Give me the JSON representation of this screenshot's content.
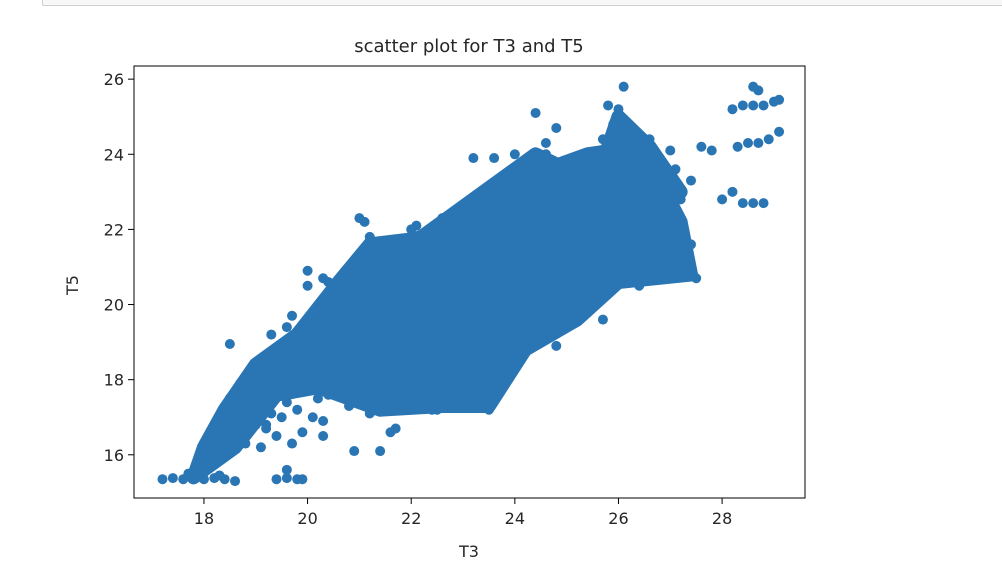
{
  "notebook": {
    "input_cell": ""
  },
  "chart_data": {
    "type": "scatter",
    "title": "scatter plot for T3 and T5",
    "xlabel": "T3",
    "ylabel": "T5",
    "xlim": [
      16.65,
      29.6
    ],
    "ylim": [
      14.85,
      26.35
    ],
    "xticks": [
      18,
      20,
      22,
      24,
      26,
      28
    ],
    "yticks": [
      16,
      18,
      20,
      22,
      24,
      26
    ],
    "grid": false,
    "legend": "none",
    "color": "#2a75b3",
    "series": [
      {
        "values": [
          [
            17.2,
            15.35
          ],
          [
            17.4,
            15.38
          ],
          [
            17.6,
            15.35
          ],
          [
            17.8,
            15.4
          ],
          [
            18.0,
            15.35
          ],
          [
            18.2,
            15.38
          ],
          [
            18.4,
            15.35
          ],
          [
            18.6,
            15.3
          ],
          [
            17.7,
            15.5
          ],
          [
            18.0,
            15.55
          ],
          [
            18.3,
            15.45
          ],
          [
            19.4,
            15.35
          ],
          [
            19.6,
            15.38
          ],
          [
            19.8,
            15.35
          ],
          [
            19.9,
            15.35
          ],
          [
            18.1,
            16.1
          ],
          [
            18.3,
            16.6
          ],
          [
            18.4,
            17.0
          ],
          [
            18.5,
            17.5
          ],
          [
            18.7,
            17.9
          ],
          [
            18.9,
            18.2
          ],
          [
            18.5,
            18.95
          ],
          [
            18.6,
            16.4
          ],
          [
            18.8,
            16.9
          ],
          [
            19.0,
            17.2
          ],
          [
            19.2,
            17.6
          ],
          [
            19.1,
            18.0
          ],
          [
            19.3,
            18.4
          ],
          [
            19.2,
            16.8
          ],
          [
            19.4,
            17.8
          ],
          [
            19.5,
            18.2
          ],
          [
            19.3,
            19.2
          ],
          [
            19.6,
            19.4
          ],
          [
            19.4,
            16.5
          ],
          [
            19.5,
            17.0
          ],
          [
            19.1,
            16.2
          ],
          [
            19.6,
            17.4
          ],
          [
            19.8,
            18.0
          ],
          [
            19.9,
            18.6
          ],
          [
            20.0,
            19.2
          ],
          [
            20.0,
            20.5
          ],
          [
            20.0,
            20.9
          ],
          [
            20.2,
            19.8
          ],
          [
            20.1,
            17.0
          ],
          [
            20.4,
            17.6
          ],
          [
            20.3,
            16.5
          ],
          [
            20.5,
            19.0
          ],
          [
            20.6,
            20.0
          ],
          [
            20.4,
            20.6
          ],
          [
            20.7,
            19.5
          ],
          [
            20.8,
            18.2
          ],
          [
            20.9,
            17.8
          ],
          [
            21.0,
            21.2
          ],
          [
            21.1,
            22.2
          ],
          [
            21.2,
            21.8
          ],
          [
            21.3,
            20.6
          ],
          [
            21.1,
            19.1
          ],
          [
            21.3,
            18.6
          ],
          [
            21.5,
            20.2
          ],
          [
            21.6,
            21.0
          ],
          [
            21.4,
            17.5
          ],
          [
            21.7,
            16.7
          ],
          [
            21.8,
            19.6
          ],
          [
            21.8,
            21.5
          ],
          [
            21.9,
            20.4
          ],
          [
            22.0,
            22.0
          ],
          [
            22.1,
            22.1
          ],
          [
            22.0,
            18.0
          ],
          [
            22.2,
            19.3
          ],
          [
            22.4,
            21.0
          ],
          [
            22.5,
            17.2
          ],
          [
            22.6,
            20.0
          ],
          [
            22.7,
            22.3
          ],
          [
            22.8,
            18.8
          ],
          [
            23.0,
            19.8
          ],
          [
            23.1,
            21.0
          ],
          [
            23.2,
            22.0
          ],
          [
            23.3,
            17.8
          ],
          [
            23.4,
            18.6
          ],
          [
            23.5,
            20.5
          ],
          [
            23.7,
            21.4
          ],
          [
            23.8,
            22.3
          ],
          [
            23.5,
            18.3
          ],
          [
            23.9,
            19.0
          ],
          [
            24.0,
            20.0
          ],
          [
            24.2,
            21.5
          ],
          [
            24.3,
            22.5
          ],
          [
            24.5,
            23.4
          ],
          [
            24.4,
            25.1
          ],
          [
            24.6,
            24.0
          ],
          [
            24.8,
            23.0
          ],
          [
            25.0,
            22.0
          ],
          [
            25.1,
            20.8
          ],
          [
            25.2,
            21.6
          ],
          [
            25.4,
            23.9
          ],
          [
            25.6,
            22.2
          ],
          [
            25.7,
            24.4
          ],
          [
            25.8,
            25.3
          ],
          [
            26.0,
            24.0
          ],
          [
            26.1,
            25.8
          ],
          [
            26.2,
            24.3
          ],
          [
            26.3,
            23.3
          ],
          [
            26.5,
            22.6
          ],
          [
            26.6,
            21.0
          ],
          [
            26.4,
            20.5
          ],
          [
            26.8,
            22.9
          ],
          [
            27.0,
            24.1
          ],
          [
            27.1,
            23.6
          ],
          [
            27.3,
            20.8
          ],
          [
            27.5,
            20.7
          ],
          [
            27.2,
            22.8
          ],
          [
            27.4,
            23.3
          ],
          [
            27.6,
            24.2
          ],
          [
            27.8,
            24.1
          ],
          [
            28.0,
            22.8
          ],
          [
            28.2,
            23.0
          ],
          [
            28.4,
            22.7
          ],
          [
            28.6,
            22.7
          ],
          [
            28.8,
            22.7
          ],
          [
            28.3,
            24.2
          ],
          [
            28.5,
            24.3
          ],
          [
            28.7,
            24.3
          ],
          [
            28.9,
            24.4
          ],
          [
            29.1,
            24.6
          ],
          [
            28.2,
            25.2
          ],
          [
            28.4,
            25.3
          ],
          [
            28.6,
            25.3
          ],
          [
            28.8,
            25.3
          ],
          [
            29.0,
            25.4
          ],
          [
            29.1,
            25.45
          ],
          [
            28.6,
            25.8
          ],
          [
            28.7,
            25.7
          ],
          [
            25.9,
            24.8
          ],
          [
            26.0,
            25.2
          ],
          [
            24.8,
            24.7
          ],
          [
            24.6,
            24.3
          ],
          [
            23.2,
            23.9
          ],
          [
            23.6,
            23.9
          ],
          [
            24.0,
            24.0
          ],
          [
            22.6,
            22.3
          ],
          [
            21.0,
            22.3
          ],
          [
            20.3,
            20.7
          ],
          [
            20.6,
            20.3
          ],
          [
            19.7,
            19.7
          ],
          [
            20.9,
            16.1
          ],
          [
            21.4,
            16.1
          ],
          [
            21.6,
            16.6
          ],
          [
            19.6,
            15.6
          ],
          [
            19.7,
            16.3
          ],
          [
            19.2,
            16.7
          ],
          [
            18.9,
            17.6
          ],
          [
            19.8,
            17.2
          ],
          [
            20.2,
            17.5
          ],
          [
            22.1,
            17.5
          ],
          [
            22.4,
            17.2
          ],
          [
            23.5,
            17.2
          ],
          [
            23.0,
            17.3
          ],
          [
            22.7,
            17.9
          ],
          [
            21.6,
            18.3
          ],
          [
            21.9,
            18.8
          ],
          [
            22.3,
            19.5
          ],
          [
            22.6,
            19.0
          ],
          [
            23.8,
            19.4
          ],
          [
            23.2,
            19.2
          ],
          [
            24.6,
            20.2
          ],
          [
            24.2,
            20.6
          ],
          [
            24.8,
            21.0
          ],
          [
            25.4,
            21.2
          ],
          [
            25.8,
            21.2
          ],
          [
            26.4,
            21.0
          ],
          [
            26.8,
            20.8
          ],
          [
            25.2,
            19.8
          ],
          [
            24.5,
            19.5
          ],
          [
            23.9,
            18.8
          ],
          [
            23.6,
            18.6
          ],
          [
            23.3,
            18.2
          ],
          [
            25.0,
            20.4
          ],
          [
            25.6,
            20.6
          ],
          [
            25.9,
            20.8
          ],
          [
            26.3,
            21.5
          ],
          [
            26.9,
            21.4
          ],
          [
            27.0,
            22.3
          ],
          [
            26.6,
            23.1
          ],
          [
            26.0,
            23.5
          ],
          [
            25.5,
            23.2
          ],
          [
            25.0,
            22.8
          ],
          [
            24.7,
            22.4
          ],
          [
            24.3,
            22.0
          ],
          [
            23.9,
            21.2
          ],
          [
            23.4,
            20.8
          ],
          [
            22.9,
            20.6
          ],
          [
            22.5,
            20.9
          ],
          [
            22.1,
            20.3
          ],
          [
            21.8,
            19.0
          ],
          [
            21.4,
            19.3
          ],
          [
            21.0,
            18.9
          ],
          [
            20.7,
            18.5
          ],
          [
            20.4,
            18.2
          ],
          [
            20.1,
            18.5
          ],
          [
            19.8,
            18.9
          ],
          [
            20.5,
            17.9
          ],
          [
            21.2,
            17.6
          ],
          [
            21.8,
            17.8
          ],
          [
            22.6,
            18.4
          ],
          [
            23.0,
            18.5
          ],
          [
            23.7,
            19.6
          ],
          [
            24.1,
            20.3
          ],
          [
            24.4,
            21.8
          ],
          [
            24.9,
            22.4
          ],
          [
            25.3,
            22.9
          ],
          [
            25.7,
            23.6
          ],
          [
            26.1,
            23.9
          ],
          [
            26.4,
            24.1
          ],
          [
            26.6,
            24.4
          ],
          [
            24.9,
            23.6
          ],
          [
            24.1,
            23.2
          ],
          [
            23.7,
            22.8
          ],
          [
            23.1,
            22.4
          ],
          [
            22.8,
            21.6
          ],
          [
            22.4,
            21.4
          ],
          [
            21.9,
            21.0
          ],
          [
            21.4,
            20.7
          ],
          [
            20.9,
            20.1
          ],
          [
            20.6,
            19.4
          ],
          [
            20.2,
            19.1
          ],
          [
            19.9,
            17.7
          ],
          [
            19.6,
            18.1
          ],
          [
            19.3,
            17.1
          ],
          [
            19.0,
            16.8
          ],
          [
            18.8,
            16.3
          ],
          [
            18.5,
            16.1
          ],
          [
            18.3,
            16.0
          ],
          [
            22.0,
            20.0
          ],
          [
            21.5,
            19.8
          ],
          [
            22.9,
            20.2
          ],
          [
            23.4,
            19.6
          ],
          [
            24.0,
            19.1
          ],
          [
            24.6,
            21.2
          ],
          [
            25.2,
            21.8
          ],
          [
            25.6,
            22.6
          ],
          [
            26.0,
            22.1
          ],
          [
            26.5,
            22.2
          ],
          [
            27.0,
            22.0
          ],
          [
            27.4,
            21.6
          ],
          [
            25.7,
            19.6
          ],
          [
            25.4,
            19.9
          ],
          [
            24.8,
            18.9
          ],
          [
            22.3,
            18.2
          ],
          [
            21.7,
            17.3
          ],
          [
            21.2,
            17.1
          ],
          [
            20.8,
            17.3
          ],
          [
            20.3,
            16.9
          ],
          [
            19.9,
            16.6
          ]
        ]
      }
    ]
  }
}
